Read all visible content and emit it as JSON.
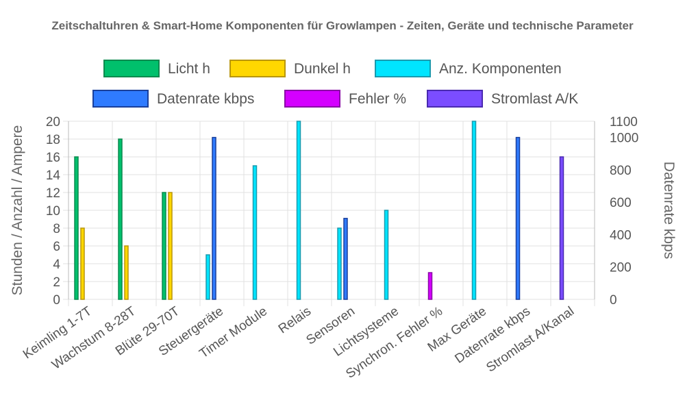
{
  "chart_data": {
    "type": "bar",
    "title": "Zeitschaltuhren & Smart-Home Komponenten für Growlampen - Zeiten, Geräte und technische Parameter",
    "ylabel_left": "Stunden / Anzahl / Ampere",
    "ylabel_right": "Datenrate kbps",
    "ylim_left": [
      0,
      20
    ],
    "yticks_left": [
      0,
      2,
      4,
      6,
      8,
      10,
      12,
      14,
      16,
      18,
      20
    ],
    "ylim_right": [
      0,
      1100
    ],
    "yticks_right": [
      0,
      200,
      400,
      600,
      800,
      1000,
      1100
    ],
    "legend_position": "top",
    "grid": true,
    "categories": [
      "Keimling 1-7T",
      "Wachstum 8-28T",
      "Blüte 29-70T",
      "Steuergeräte",
      "Timer Module",
      "Relais",
      "Sensoren",
      "Lichtsysteme",
      "Synchron. Fehler %",
      "Max Geräte",
      "Datenrate kbps",
      "Stromlast A/Kanal"
    ],
    "series": [
      {
        "name": "Licht h",
        "axis": "left",
        "color": "#00c06c",
        "border": "#0a8a4e",
        "values": [
          16,
          18,
          12,
          null,
          null,
          null,
          null,
          null,
          null,
          null,
          null,
          null
        ]
      },
      {
        "name": "Dunkel h",
        "axis": "left",
        "color": "#ffd700",
        "border": "#b8960a",
        "values": [
          8,
          6,
          12,
          null,
          null,
          null,
          null,
          null,
          null,
          null,
          null,
          null
        ]
      },
      {
        "name": "Anz. Komponenten",
        "axis": "left",
        "color": "#00e5ff",
        "border": "#1a9aae",
        "values": [
          null,
          null,
          null,
          5,
          15,
          20,
          8,
          10,
          null,
          20,
          null,
          null
        ]
      },
      {
        "name": "Datenrate kbps",
        "axis": "right",
        "color": "#2f7bff",
        "border": "#1a3f9a",
        "values": [
          null,
          null,
          null,
          1000,
          null,
          null,
          500,
          null,
          null,
          null,
          1000,
          null
        ]
      },
      {
        "name": "Fehler %",
        "axis": "left",
        "color": "#d400ff",
        "border": "#8a0aa6",
        "values": [
          null,
          null,
          null,
          null,
          null,
          null,
          null,
          null,
          3,
          null,
          null,
          null
        ]
      },
      {
        "name": "Stromlast A/K",
        "axis": "left",
        "color": "#7b4dff",
        "border": "#4a2ab0",
        "values": [
          null,
          null,
          null,
          null,
          null,
          null,
          null,
          null,
          null,
          null,
          null,
          16
        ]
      }
    ]
  }
}
